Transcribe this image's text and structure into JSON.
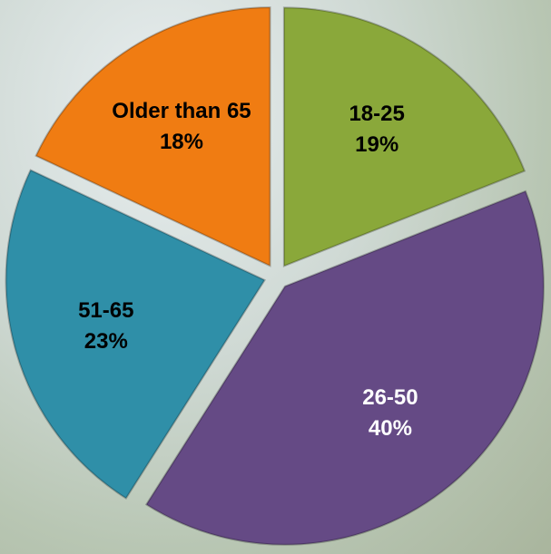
{
  "chart_data": {
    "type": "pie",
    "categories": [
      "18-25",
      "26-50",
      "51-65",
      "Older than 65"
    ],
    "values": [
      19,
      40,
      23,
      18
    ],
    "value_labels": [
      "19%",
      "40%",
      "23%",
      "18%"
    ],
    "colors": [
      "#8aa83a",
      "#654a85",
      "#2f8fa8",
      "#f07c12"
    ],
    "label_colors": [
      "#000000",
      "#ffffff",
      "#000000",
      "#000000"
    ]
  }
}
